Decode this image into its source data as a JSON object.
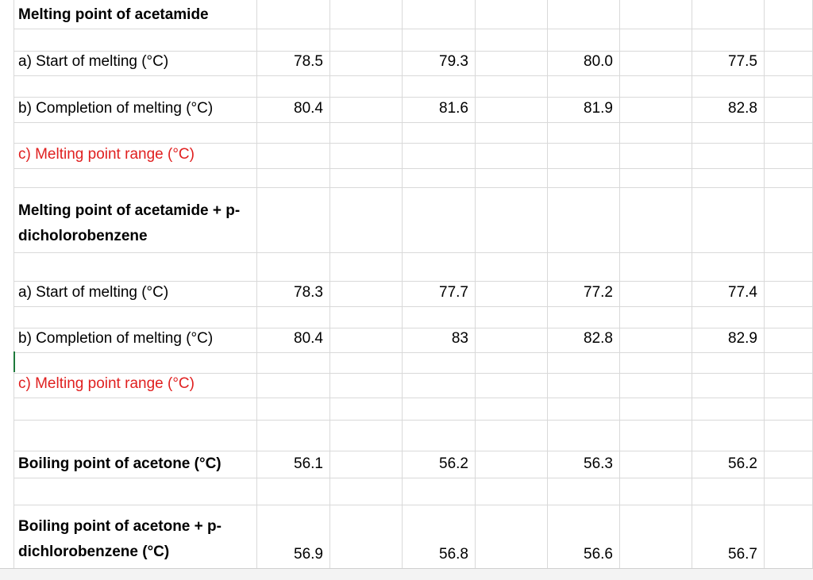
{
  "rows": [
    {
      "label": "Melting point of acetamide",
      "style": "bold",
      "values": [
        "",
        "",
        "",
        ""
      ]
    },
    {
      "label": "",
      "style": "spacer",
      "values": [
        "",
        "",
        "",
        ""
      ]
    },
    {
      "label": "a) Start of melting (°C)",
      "style": "normal",
      "values": [
        "78.5",
        "79.3",
        "80.0",
        "77.5"
      ]
    },
    {
      "label": "",
      "style": "spacer",
      "values": [
        "",
        "",
        "",
        ""
      ]
    },
    {
      "label": "b) Completion of melting (°C)",
      "style": "normal",
      "values": [
        "80.4",
        "81.6",
        "81.9",
        "82.8"
      ]
    },
    {
      "label": "",
      "style": "spacer",
      "values": [
        "",
        "",
        "",
        ""
      ]
    },
    {
      "label": "c) Melting point range (°C)",
      "style": "red",
      "values": [
        "",
        "",
        "",
        ""
      ]
    },
    {
      "label": "",
      "style": "spacer",
      "values": [
        "",
        "",
        "",
        ""
      ]
    },
    {
      "label": "Melting point of acetamide + p-dicholorobenzene",
      "style": "bold-multi",
      "values": [
        "",
        "",
        "",
        ""
      ]
    },
    {
      "label": "",
      "style": "spacer",
      "values": [
        "",
        "",
        "",
        ""
      ]
    },
    {
      "label": "a) Start of melting (°C)",
      "style": "normal",
      "values": [
        "78.3",
        "77.7",
        "77.2",
        "77.4"
      ]
    },
    {
      "label": "",
      "style": "spacer",
      "values": [
        "",
        "",
        "",
        ""
      ]
    },
    {
      "label": "b) Completion of melting (°C)",
      "style": "normal",
      "values": [
        "80.4",
        "83",
        "82.8",
        "82.9"
      ]
    },
    {
      "label": "",
      "style": "spacer",
      "values": [
        "",
        "",
        "",
        ""
      ]
    },
    {
      "label": "c) Melting point range (°C)",
      "style": "red",
      "values": [
        "",
        "",
        "",
        ""
      ]
    },
    {
      "label": "",
      "style": "spacer",
      "values": [
        "",
        "",
        "",
        ""
      ]
    },
    {
      "label": "",
      "style": "spacer",
      "values": [
        "",
        "",
        "",
        ""
      ]
    },
    {
      "label": "Boiling point of acetone (°C)",
      "style": "bold",
      "values": [
        "56.1",
        "56.2",
        "56.3",
        "56.2"
      ]
    },
    {
      "label": "",
      "style": "spacer",
      "values": [
        "",
        "",
        "",
        ""
      ]
    },
    {
      "label": "Boiling point of acetone + p-dichlorobenzene (°C)",
      "style": "bold-multi",
      "values": [
        "56.9",
        "56.8",
        "56.6",
        "56.7"
      ]
    }
  ],
  "colors": {
    "red_text": "#e02020",
    "gridline": "#d9d9d9",
    "cursor": "#1e7a3c"
  }
}
